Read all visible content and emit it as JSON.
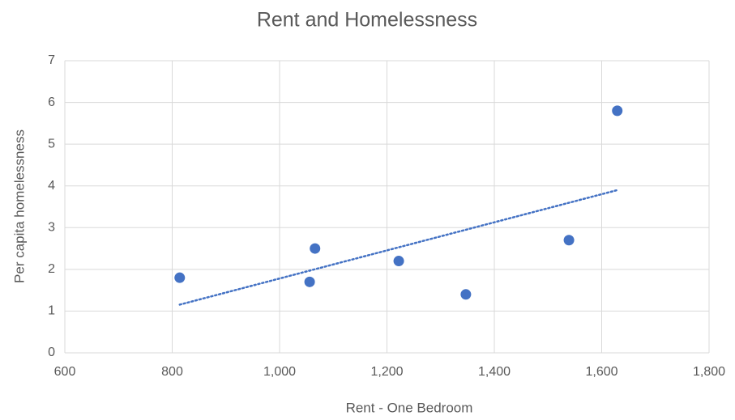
{
  "chart_data": {
    "type": "scatter",
    "title": "Rent and Homelessness",
    "x_label": "Rent - One Bedroom",
    "y_label": "Per capita homelessness",
    "x": [
      814,
      1056,
      1066,
      1222,
      1347,
      1539,
      1629
    ],
    "values": [
      1.8,
      1.7,
      2.5,
      2.2,
      1.4,
      2.7,
      5.8
    ],
    "color": "#4472c4",
    "trendline": "linear",
    "xlim": [
      600,
      1800
    ],
    "xticks": [
      600,
      800,
      {
        "value": 1000,
        "label": "1,000"
      },
      {
        "value": 1200,
        "label": "1,200"
      },
      {
        "value": 1400,
        "label": "1,400"
      },
      {
        "value": 1600,
        "label": "1,600"
      },
      {
        "value": 1800,
        "label": "1,800"
      }
    ],
    "ylim": [
      0,
      7
    ],
    "yticks": [
      0,
      1,
      2,
      3,
      4,
      5,
      6,
      7
    ],
    "grid": true
  }
}
